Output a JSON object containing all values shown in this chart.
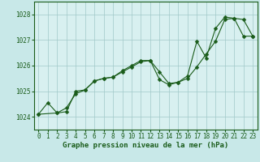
{
  "title": "Graphe pression niveau de la mer (hPa)",
  "bg_color": "#c8e8e8",
  "plot_bg_color": "#d8f0f0",
  "line_color": "#1a5c1a",
  "grid_color": "#a0c8c8",
  "xlim": [
    -0.5,
    23.5
  ],
  "ylim": [
    1023.5,
    1028.5
  ],
  "xticks": [
    0,
    1,
    2,
    3,
    4,
    5,
    6,
    7,
    8,
    9,
    10,
    11,
    12,
    13,
    14,
    15,
    16,
    17,
    18,
    19,
    20,
    21,
    22,
    23
  ],
  "yticks": [
    1024,
    1025,
    1026,
    1027,
    1028
  ],
  "series1_x": [
    0,
    1,
    2,
    3,
    4,
    5,
    6,
    7,
    8,
    9,
    10,
    11,
    12,
    13,
    14,
    15,
    16,
    17,
    18,
    19,
    20,
    21,
    22,
    23
  ],
  "series1_y": [
    1024.1,
    1024.55,
    1024.15,
    1024.35,
    1024.9,
    1025.05,
    1025.4,
    1025.5,
    1025.55,
    1025.75,
    1025.95,
    1026.15,
    1026.2,
    1025.45,
    1025.25,
    1025.35,
    1025.5,
    1025.95,
    1026.45,
    1026.95,
    1027.8,
    1027.85,
    1027.8,
    1027.15
  ],
  "series2_x": [
    0,
    2,
    3,
    4,
    5,
    6,
    7,
    8,
    9,
    10,
    11,
    12,
    13,
    14,
    15,
    16,
    17,
    18,
    19,
    20,
    21,
    22,
    23
  ],
  "series2_y": [
    1024.1,
    1024.15,
    1024.2,
    1025.0,
    1025.05,
    1025.4,
    1025.5,
    1025.55,
    1025.8,
    1026.0,
    1026.2,
    1026.2,
    1025.75,
    1025.3,
    1025.35,
    1025.6,
    1026.95,
    1026.3,
    1027.45,
    1027.9,
    1027.85,
    1027.15,
    1027.15
  ],
  "marker_size": 2.5,
  "title_fontsize": 6.5,
  "tick_fontsize": 5.5
}
